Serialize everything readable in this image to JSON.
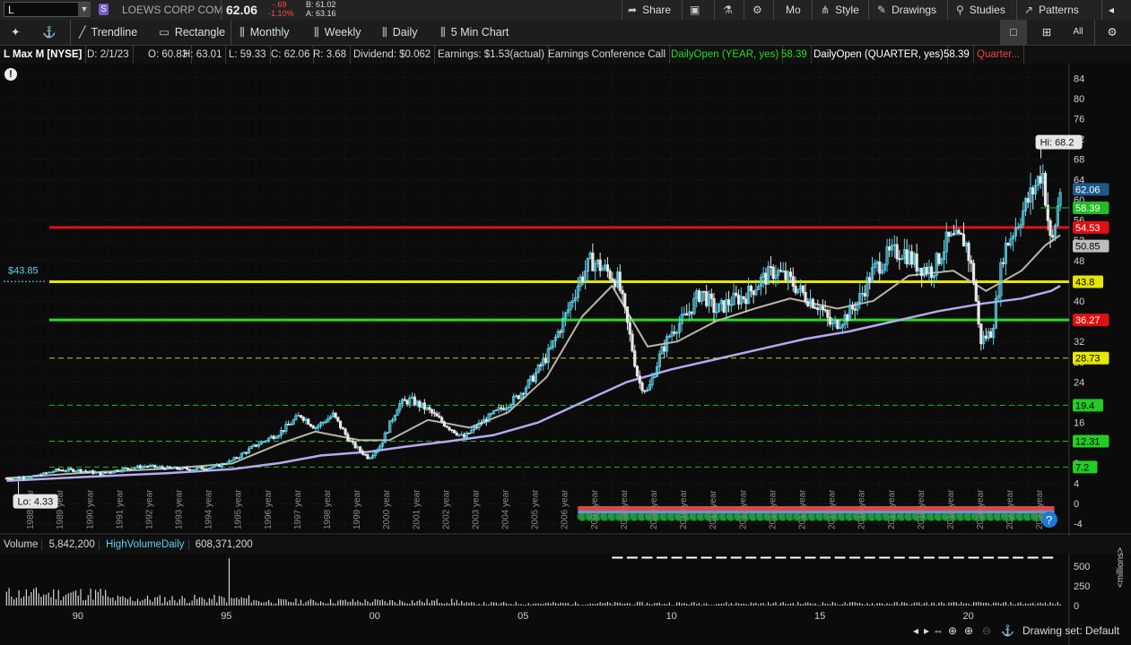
{
  "topbar": {
    "symbol": "L",
    "s_badge": "S",
    "company": "LOEWS CORP COM",
    "last": "62.06",
    "change": "-.69",
    "change_pct": "-1.10%",
    "bid": "B: 61.02",
    "ask": "A: 63.16",
    "menu": [
      "Share",
      "Mo",
      "Style",
      "Drawings",
      "Studies",
      "Patterns"
    ]
  },
  "toolbar": {
    "tools": [
      "Trendline",
      "Rectangle",
      "Monthly",
      "Weekly",
      "Daily",
      "5 Min Chart"
    ]
  },
  "infobar": {
    "title": "L Max M [NYSE]",
    "date": "D: 2/1/23",
    "open": "O: 60.83",
    "high": "H: 63.01",
    "low": "L: 59.33",
    "close": "C: 62.06",
    "range": "R: 3.68",
    "dividend": "Dividend: $0.062",
    "earnings": "Earnings: $1.53(actual)",
    "conf_call": "Earnings Conference Call",
    "daily_open_year": "DailyOpen (YEAR, yes)",
    "daily_open_year_val": "58.39",
    "daily_open_quarter": "DailyOpen (QUARTER, yes)",
    "daily_open_quarter_val": "58.39",
    "quarter_trunc": "Quarter..."
  },
  "colors": {
    "up": "#5fd3ea",
    "down": "#e8e8e8",
    "red_line": "#e01010",
    "yellow_line": "#e6e600",
    "green_line": "#22dd22",
    "ma_gray": "#b9b6a8",
    "ma_lavender": "#b4aaf0",
    "dash_green": "#22bb22",
    "dash_yellow": "#cccc00"
  },
  "chart_data": {
    "type": "candlestick",
    "ylim": [
      -6,
      86
    ],
    "xlim": [
      1987.5,
      2023.4
    ],
    "y_ticks": [
      -4,
      0,
      4,
      8,
      12,
      16,
      20,
      24,
      28,
      32,
      36,
      40,
      44,
      48,
      52,
      56,
      60,
      64,
      68,
      72,
      76,
      80,
      84
    ],
    "x_year_labels": [
      "1988 year",
      "1989 year",
      "1990 year",
      "1991 year",
      "1992 year",
      "1993 year",
      "1994 year",
      "1995 year",
      "1996 year",
      "1997 year",
      "1998 year",
      "1999 year",
      "2000 year",
      "2001 year",
      "2002 year",
      "2003 year",
      "2004 year",
      "2005 year",
      "2006 year",
      "2007 year",
      "2008 year",
      "2009 year",
      "2010 year",
      "2011 year",
      "2012 year",
      "2013 year",
      "2014 year",
      "2015 year",
      "2016 year",
      "2017 year",
      "2018 year",
      "2019 year",
      "2020 year",
      "2021 year",
      "2022 year"
    ],
    "price_path": [
      [
        1987.6,
        5.0
      ],
      [
        1988.5,
        5.2
      ],
      [
        1989.3,
        6.6
      ],
      [
        1990.0,
        6.6
      ],
      [
        1990.8,
        5.9
      ],
      [
        1991.5,
        6.8
      ],
      [
        1992.3,
        7.4
      ],
      [
        1993.0,
        7.0
      ],
      [
        1993.8,
        6.8
      ],
      [
        1994.6,
        7.2
      ],
      [
        1995.2,
        8.5
      ],
      [
        1996.0,
        11.5
      ],
      [
        1996.8,
        14.0
      ],
      [
        1997.5,
        17.5
      ],
      [
        1998.0,
        15.0
      ],
      [
        1998.6,
        17.5
      ],
      [
        1999.2,
        12.0
      ],
      [
        1999.8,
        9.0
      ],
      [
        2000.2,
        11.5
      ],
      [
        2000.8,
        19.5
      ],
      [
        2001.2,
        20.5
      ],
      [
        2001.8,
        18.5
      ],
      [
        2002.4,
        15.5
      ],
      [
        2003.0,
        13.0
      ],
      [
        2003.6,
        16.0
      ],
      [
        2004.2,
        18.5
      ],
      [
        2004.8,
        21.0
      ],
      [
        2005.3,
        24.5
      ],
      [
        2005.9,
        30.0
      ],
      [
        2006.5,
        38.0
      ],
      [
        2006.9,
        44.0
      ],
      [
        2007.3,
        48.0
      ],
      [
        2007.8,
        46.0
      ],
      [
        2008.2,
        44.0
      ],
      [
        2008.6,
        33.0
      ],
      [
        2008.9,
        24.0
      ],
      [
        2009.2,
        22.0
      ],
      [
        2009.6,
        29.0
      ],
      [
        2010.0,
        34.0
      ],
      [
        2010.5,
        37.0
      ],
      [
        2011.0,
        42.0
      ],
      [
        2011.5,
        38.0
      ],
      [
        2012.0,
        40.0
      ],
      [
        2012.5,
        41.0
      ],
      [
        2013.0,
        44.0
      ],
      [
        2013.5,
        46.0
      ],
      [
        2014.0,
        44.0
      ],
      [
        2014.5,
        41.0
      ],
      [
        2015.0,
        39.0
      ],
      [
        2015.4,
        35.0
      ],
      [
        2015.9,
        37.0
      ],
      [
        2016.3,
        40.0
      ],
      [
        2016.8,
        46.0
      ],
      [
        2017.3,
        49.0
      ],
      [
        2017.8,
        50.0
      ],
      [
        2018.3,
        47.0
      ],
      [
        2018.8,
        46.0
      ],
      [
        2019.3,
        52.0
      ],
      [
        2019.9,
        52.0
      ],
      [
        2020.2,
        44.0
      ],
      [
        2020.4,
        32.0
      ],
      [
        2020.8,
        34.0
      ],
      [
        2021.2,
        50.0
      ],
      [
        2021.7,
        56.0
      ],
      [
        2022.2,
        62.0
      ],
      [
        2022.5,
        66.0
      ],
      [
        2022.8,
        50.0
      ],
      [
        2023.0,
        58.0
      ],
      [
        2023.1,
        62.06
      ]
    ],
    "ma_fast": [
      [
        1987.6,
        5.0
      ],
      [
        1990.0,
        6.0
      ],
      [
        1993.0,
        6.9
      ],
      [
        1995.2,
        7.9
      ],
      [
        1996.8,
        11.8
      ],
      [
        1998.0,
        14.2
      ],
      [
        1999.5,
        12.5
      ],
      [
        2000.5,
        12.5
      ],
      [
        2001.8,
        16.5
      ],
      [
        2003.2,
        15.0
      ],
      [
        2004.5,
        18.0
      ],
      [
        2005.8,
        25.0
      ],
      [
        2007.0,
        37.0
      ],
      [
        2008.0,
        43.0
      ],
      [
        2009.2,
        31.0
      ],
      [
        2010.2,
        32.0
      ],
      [
        2011.5,
        36.0
      ],
      [
        2012.8,
        38.5
      ],
      [
        2014.0,
        40.5
      ],
      [
        2015.6,
        38.5
      ],
      [
        2016.8,
        40.0
      ],
      [
        2018.0,
        45.0
      ],
      [
        2019.5,
        46.0
      ],
      [
        2020.6,
        42.0
      ],
      [
        2021.8,
        46.0
      ],
      [
        2022.6,
        51.0
      ],
      [
        2023.1,
        53.0
      ]
    ],
    "ma_slow": [
      [
        1987.6,
        4.5
      ],
      [
        1990.0,
        5.2
      ],
      [
        1993.0,
        6.0
      ],
      [
        1995.2,
        6.8
      ],
      [
        1996.8,
        8.0
      ],
      [
        1998.2,
        9.5
      ],
      [
        1999.8,
        10.2
      ],
      [
        2001.0,
        11.2
      ],
      [
        2002.5,
        12.3
      ],
      [
        2004.0,
        13.5
      ],
      [
        2005.5,
        16.0
      ],
      [
        2007.0,
        20.0
      ],
      [
        2008.5,
        24.0
      ],
      [
        2010.0,
        26.5
      ],
      [
        2011.5,
        28.5
      ],
      [
        2013.0,
        30.5
      ],
      [
        2014.5,
        32.5
      ],
      [
        2016.0,
        34.0
      ],
      [
        2017.5,
        36.0
      ],
      [
        2019.0,
        38.0
      ],
      [
        2020.5,
        39.5
      ],
      [
        2021.8,
        40.5
      ],
      [
        2022.8,
        42.0
      ],
      [
        2023.1,
        43.0
      ]
    ],
    "horizontal_levels": [
      {
        "value": 54.53,
        "label": "54.53",
        "style": "solid",
        "color": "#e01010",
        "badge_bg": "#e01010",
        "badge_fg": "#ffffff"
      },
      {
        "value": 43.8,
        "label": "43.8",
        "style": "solid",
        "color": "#e6e600",
        "badge_bg": "#e6e600",
        "badge_fg": "#000000"
      },
      {
        "value": 36.27,
        "label": "36.27",
        "style": "solid",
        "color": "#22dd22",
        "badge_bg": "#e01010",
        "badge_fg": "#ffffff"
      },
      {
        "value": 28.73,
        "label": "28.73",
        "style": "dashed",
        "color": "#cccc00",
        "badge_bg": "#e6e600",
        "badge_fg": "#000000"
      },
      {
        "value": 19.4,
        "label": "19.4",
        "style": "dashed",
        "color": "#22bb22",
        "badge_bg": "#22cc22",
        "badge_fg": "#000000"
      },
      {
        "value": 12.31,
        "label": "12.31",
        "style": "dashed",
        "color": "#22bb22",
        "badge_bg": "#22cc22",
        "badge_fg": "#000000"
      },
      {
        "value": 7.2,
        "label": "7.2",
        "style": "dashed",
        "color": "#22bb22",
        "badge_bg": "#22cc22",
        "badge_fg": "#000000"
      }
    ],
    "price_badges": [
      {
        "value": 62.06,
        "label": "62.06",
        "bg": "#1d5a8a",
        "fg": "#ffffff"
      },
      {
        "value": 58.39,
        "label": "58.39",
        "bg": "#22bb22",
        "fg": "#ffffff"
      },
      {
        "value": 50.85,
        "label": "50.85",
        "bg": "#bdbdbd",
        "fg": "#000000"
      }
    ],
    "annotations": {
      "hi": "Hi: 68.2",
      "lo": "Lo: 4.33",
      "left_marker": "$43.85"
    },
    "volume": {
      "label": "Volume",
      "value": "5,842,200",
      "high_label": "HighVolumeDaily",
      "high_value": "608,371,200",
      "y_ticks": [
        500,
        250,
        0
      ],
      "unit": "<millions>",
      "x_ticks": [
        "90",
        "95",
        "00",
        "05",
        "10",
        "15",
        "20"
      ]
    }
  },
  "footer": {
    "drawing_set": "Drawing set: Default"
  }
}
